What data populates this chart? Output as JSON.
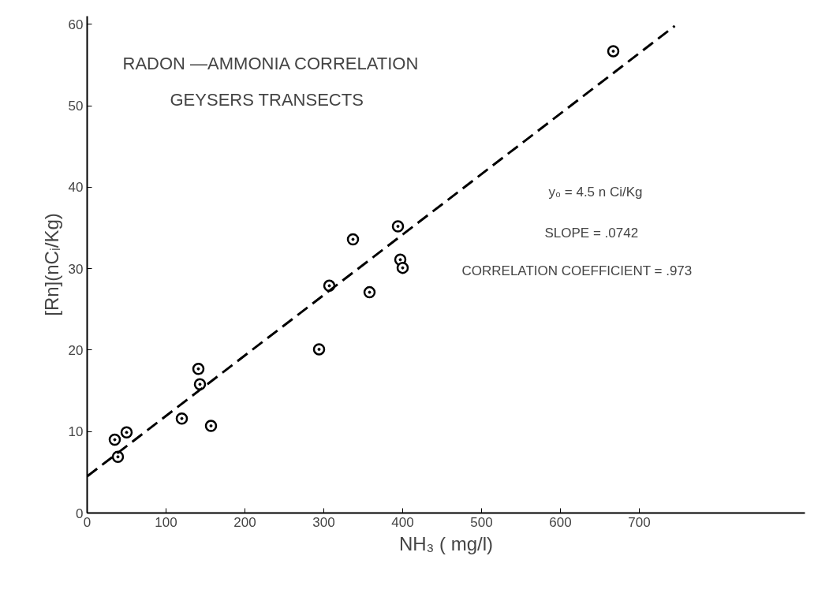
{
  "chart_data": {
    "type": "scatter",
    "title": "RADON —AMMONIA CORRELATION",
    "subtitle": "GEYSERS TRANSECTS",
    "xlabel": "NH₃ ( mg/l)",
    "ylabel": "[Rn](nCᵢ/Kg)",
    "annotations": [
      "y₀ = 4.5 n Ci/Kg",
      "SLOPE = .0742",
      "CORRELATION COEFFICIENT = .973"
    ],
    "xlim": [
      0,
      910
    ],
    "ylim": [
      0,
      61
    ],
    "xticks": [
      0,
      100,
      200,
      300,
      400,
      500,
      600,
      700
    ],
    "yticks": [
      0,
      10,
      20,
      30,
      40,
      50,
      60
    ],
    "grid": false,
    "series": [
      {
        "marker": "circle",
        "color": "#000000",
        "x": [
          35,
          39,
          50,
          120,
          141,
          143,
          157,
          294,
          307,
          337,
          358,
          394,
          397,
          400,
          667
        ],
        "values": [
          9.0,
          6.9,
          9.9,
          11.6,
          17.7,
          15.8,
          10.7,
          20.1,
          27.9,
          33.6,
          27.1,
          35.2,
          31.1,
          30.1,
          56.7
        ]
      },
      {
        "type": "line",
        "color": "#000000",
        "line_style": "dashed",
        "x": [
          0,
          745
        ],
        "values": [
          4.5,
          59.8
        ]
      }
    ]
  }
}
